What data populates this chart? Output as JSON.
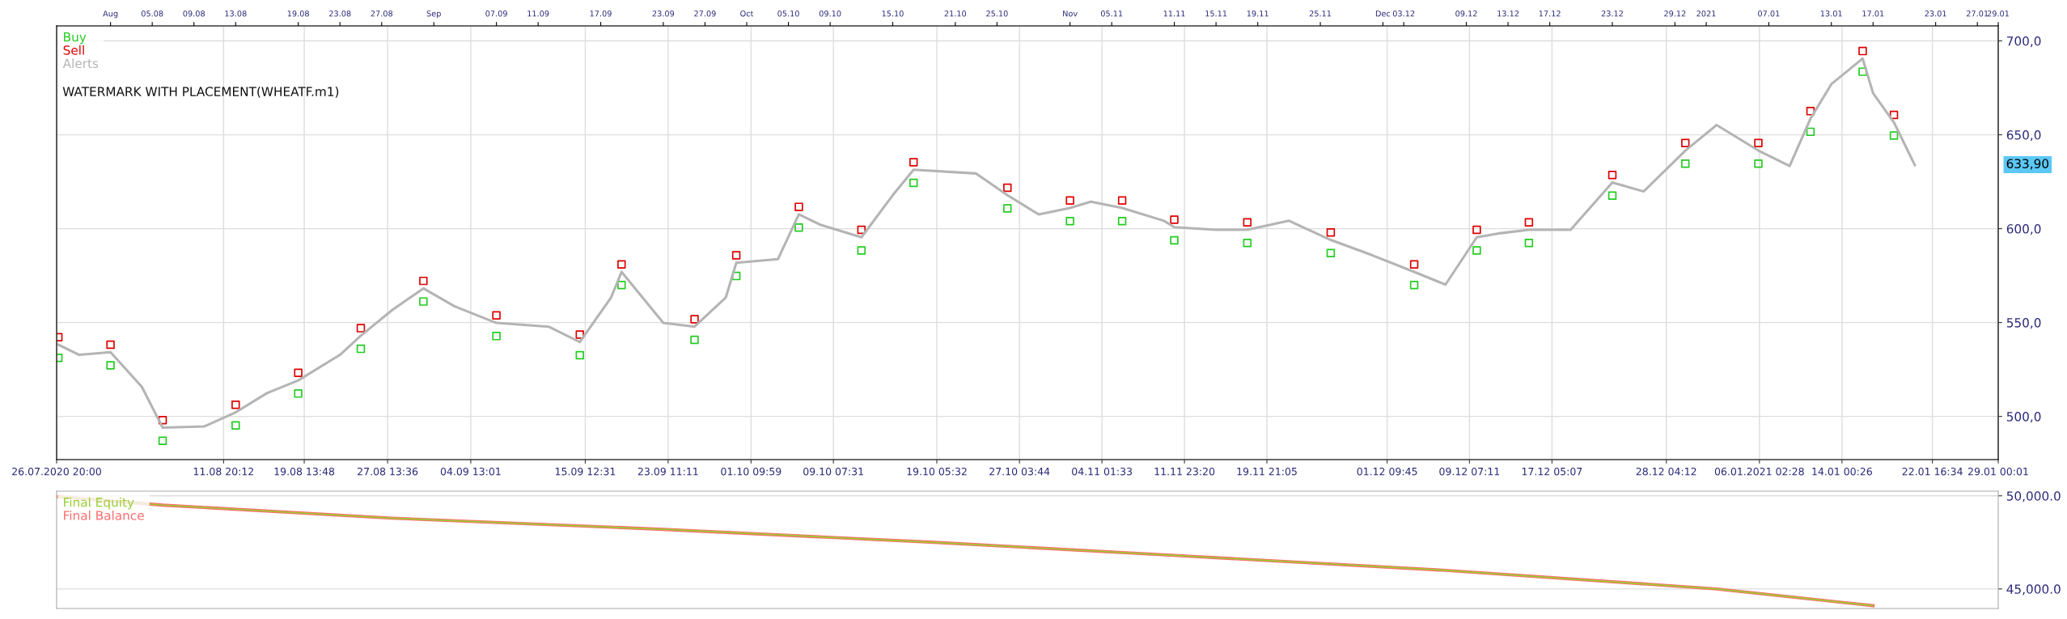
{
  "chart_data": [
    {
      "type": "line",
      "annotations": [
        "WATERMARK WITH PLACEMENT(WHEATF.m1)",
        "633,90"
      ],
      "xlim": [
        "2020-07-26T20:00",
        "2021-01-29T00:01"
      ],
      "xticks": [
        {
          "value": "2020-07-26T20:00",
          "label": "26.07.2020 20:00"
        },
        {
          "value": "2020-08-11T20:12",
          "label": "11.08 20:12"
        },
        {
          "value": "2020-08-19T13:48",
          "label": "19.08 13:48"
        },
        {
          "value": "2020-08-27T13:36",
          "label": "27.08 13:36"
        },
        {
          "value": "2020-09-04T13:01",
          "label": "04.09 13:01"
        },
        {
          "value": "2020-09-15T12:31",
          "label": "15.09 12:31"
        },
        {
          "value": "2020-09-23T11:11",
          "label": "23.09 11:11"
        },
        {
          "value": "2020-10-01T09:59",
          "label": "01.10 09:59"
        },
        {
          "value": "2020-10-09T07:31",
          "label": "09.10 07:31"
        },
        {
          "value": "2020-10-19T05:32",
          "label": "19.10 05:32"
        },
        {
          "value": "2020-10-27T03:44",
          "label": "27.10 03:44"
        },
        {
          "value": "2020-11-04T01:33",
          "label": "04.11 01:33"
        },
        {
          "value": "2020-11-11T23:20",
          "label": "11.11 23:20"
        },
        {
          "value": "2020-11-19T21:05",
          "label": "19.11 21:05"
        },
        {
          "value": "2020-12-01T09:45",
          "label": "01.12 09:45"
        },
        {
          "value": "2020-12-09T07:11",
          "label": "09.12 07:11"
        },
        {
          "value": "2020-12-17T05:07",
          "label": "17.12 05:07"
        },
        {
          "value": "2020-12-28T04:12",
          "label": "28.12 04:12"
        },
        {
          "value": "2021-01-06T02:28",
          "label": "06.01.2021 02:28"
        },
        {
          "value": "2021-01-14T00:26",
          "label": "14.01 00:26"
        },
        {
          "value": "2021-01-22T16:34",
          "label": "22.01 16:34"
        },
        {
          "value": "2021-01-29T00:01",
          "label": "29.01 00:01"
        }
      ],
      "x2lim": [
        "2020-07-26T20:00",
        "2021-01-29T00:01"
      ],
      "x2ticks": [
        {
          "value": "2020-08-01",
          "label": "Aug"
        },
        {
          "value": "2020-08-05",
          "label": "05.08"
        },
        {
          "value": "2020-08-09",
          "label": "09.08"
        },
        {
          "value": "2020-08-13",
          "label": "13.08"
        },
        {
          "value": "2020-08-19",
          "label": "19.08"
        },
        {
          "value": "2020-08-23",
          "label": "23.08"
        },
        {
          "value": "2020-08-27",
          "label": "27.08"
        },
        {
          "value": "2020-09-01",
          "label": "Sep"
        },
        {
          "value": "2020-09-07",
          "label": "07.09"
        },
        {
          "value": "2020-09-11",
          "label": "11.09"
        },
        {
          "value": "2020-09-17",
          "label": "17.09"
        },
        {
          "value": "2020-09-23",
          "label": "23.09"
        },
        {
          "value": "2020-09-27",
          "label": "27.09"
        },
        {
          "value": "2020-10-01",
          "label": "Oct"
        },
        {
          "value": "2020-10-05",
          "label": "05.10"
        },
        {
          "value": "2020-10-09",
          "label": "09.10"
        },
        {
          "value": "2020-10-15",
          "label": "15.10"
        },
        {
          "value": "2020-10-21",
          "label": "21.10"
        },
        {
          "value": "2020-10-25",
          "label": "25.10"
        },
        {
          "value": "2020-11-01",
          "label": "Nov"
        },
        {
          "value": "2020-11-05",
          "label": "05.11"
        },
        {
          "value": "2020-11-11",
          "label": "11.11"
        },
        {
          "value": "2020-11-15",
          "label": "15.11"
        },
        {
          "value": "2020-11-19",
          "label": "19.11"
        },
        {
          "value": "2020-11-25",
          "label": "25.11"
        },
        {
          "value": "2020-12-01",
          "label": "Dec"
        },
        {
          "value": "2020-12-03",
          "label": "03.12"
        },
        {
          "value": "2020-12-09",
          "label": "09.12"
        },
        {
          "value": "2020-12-13",
          "label": "13.12"
        },
        {
          "value": "2020-12-17",
          "label": "17.12"
        },
        {
          "value": "2020-12-23",
          "label": "23.12"
        },
        {
          "value": "2020-12-29",
          "label": "29.12"
        },
        {
          "value": "2021-01-01",
          "label": "2021"
        },
        {
          "value": "2021-01-07",
          "label": "07.01"
        },
        {
          "value": "2021-01-13",
          "label": "13.01"
        },
        {
          "value": "2021-01-17",
          "label": "17.01"
        },
        {
          "value": "2021-01-23",
          "label": "23.01"
        },
        {
          "value": "2021-01-27",
          "label": "27.01"
        },
        {
          "value": "2021-01-29",
          "label": "29.01"
        }
      ],
      "ylim": [
        477,
        708
      ],
      "yticks": [
        {
          "value": 500,
          "label": "500,0"
        },
        {
          "value": 550,
          "label": "550,0"
        },
        {
          "value": 600,
          "label": "600,0"
        },
        {
          "value": 650,
          "label": "650,0"
        },
        {
          "value": 700,
          "label": "700,0"
        }
      ],
      "grid": true,
      "legend": "top left",
      "series": [
        {
          "name": "Buy",
          "color": "#22cc22",
          "type": "scatter",
          "marker": "square",
          "x": [
            "2020-07-27",
            "2020-08-01",
            "2020-08-06",
            "2020-08-13",
            "2020-08-19",
            "2020-08-25",
            "2020-08-31",
            "2020-09-07",
            "2020-09-15",
            "2020-09-19",
            "2020-09-26",
            "2020-09-30",
            "2020-10-06",
            "2020-10-12",
            "2020-10-17",
            "2020-10-26",
            "2020-11-01",
            "2020-11-06",
            "2020-11-11",
            "2020-11-18",
            "2020-11-26",
            "2020-12-04",
            "2020-12-10",
            "2020-12-15",
            "2020-12-23",
            "2020-12-30",
            "2021-01-06",
            "2021-01-11",
            "2021-01-16",
            "2021-01-19"
          ],
          "values": [
            531.2,
            527.2,
            487,
            495.2,
            512.2,
            536,
            561.2,
            542.8,
            532.6,
            570,
            540.8,
            574.8,
            600.6,
            588.4,
            624.4,
            610.8,
            604,
            604,
            593.8,
            592.4,
            587,
            570,
            588.4,
            592.4,
            617.6,
            634.6,
            634.6,
            651.6,
            683.6,
            649.6
          ]
        },
        {
          "name": "Sell",
          "color": "#dd0000",
          "type": "scatter",
          "marker": "square",
          "x": [
            "2020-07-27",
            "2020-08-01",
            "2020-08-06",
            "2020-08-13",
            "2020-08-19",
            "2020-08-25",
            "2020-08-31",
            "2020-09-07",
            "2020-09-15",
            "2020-09-19",
            "2020-09-26",
            "2020-09-30",
            "2020-10-06",
            "2020-10-12",
            "2020-10-17",
            "2020-10-26",
            "2020-11-01",
            "2020-11-06",
            "2020-11-11",
            "2020-11-18",
            "2020-11-26",
            "2020-12-04",
            "2020-12-10",
            "2020-12-15",
            "2020-12-23",
            "2020-12-30",
            "2021-01-06",
            "2021-01-11",
            "2021-01-16",
            "2021-01-19"
          ],
          "values": [
            542.2,
            538.2,
            498,
            506.2,
            523.2,
            547,
            572.2,
            553.8,
            543.6,
            581,
            551.8,
            585.8,
            611.6,
            599.4,
            635.4,
            621.8,
            615,
            615,
            604.8,
            603.4,
            598,
            581,
            599.4,
            603.4,
            628.6,
            645.6,
            645.6,
            662.6,
            694.6,
            660.6
          ]
        },
        {
          "name": "Alerts",
          "color": "#b4b4b4",
          "type": "line",
          "x": [
            "2020-07-27",
            "2020-07-29",
            "2020-08-01",
            "2020-08-04",
            "2020-08-06",
            "2020-08-10",
            "2020-08-13",
            "2020-08-16",
            "2020-08-19",
            "2020-08-23",
            "2020-08-25",
            "2020-08-28",
            "2020-08-31",
            "2020-09-03",
            "2020-09-07",
            "2020-09-12",
            "2020-09-15",
            "2020-09-18",
            "2020-09-19",
            "2020-09-23",
            "2020-09-26",
            "2020-09-29",
            "2020-09-30",
            "2020-10-04",
            "2020-10-06",
            "2020-10-08",
            "2020-10-12",
            "2020-10-15",
            "2020-10-17",
            "2020-10-23",
            "2020-10-26",
            "2020-10-29",
            "2020-11-01",
            "2020-11-03",
            "2020-11-06",
            "2020-11-10",
            "2020-11-11",
            "2020-11-15",
            "2020-11-18",
            "2020-11-22",
            "2020-11-26",
            "2020-11-30",
            "2020-12-04",
            "2020-12-07",
            "2020-12-10",
            "2020-12-12",
            "2020-12-15",
            "2020-12-19",
            "2020-12-23",
            "2020-12-26",
            "2020-12-30",
            "2021-01-02",
            "2021-01-06",
            "2021-01-09",
            "2021-01-11",
            "2021-01-13",
            "2021-01-16",
            "2021-01-17",
            "2021-01-19",
            "2021-01-21"
          ],
          "values": [
            538.2,
            532.8,
            534.2,
            515.8,
            494,
            494.7,
            502.2,
            512.4,
            519.2,
            532.8,
            543,
            556.6,
            568.2,
            558.6,
            549.8,
            547.8,
            539.6,
            563.4,
            577,
            549.8,
            547.8,
            563.4,
            581.8,
            583.8,
            607.6,
            602.2,
            595.4,
            617.8,
            631.4,
            629.4,
            617.8,
            607.6,
            611,
            614.4,
            611,
            604.2,
            600.8,
            599.4,
            599.4,
            604.2,
            594,
            585.8,
            577,
            570.2,
            595.4,
            597.4,
            599.4,
            599.4,
            624.6,
            619.8,
            641.6,
            655.2,
            641.6,
            633.4,
            658.6,
            677,
            690.6,
            672.2,
            656.6,
            633.9
          ]
        }
      ]
    },
    {
      "type": "line",
      "xlim": [
        "2020-07-26T20:00",
        "2021-01-29T00:01"
      ],
      "tick_labels": "y",
      "ylim": [
        43950,
        50250
      ],
      "yticks": [
        {
          "value": 45000,
          "label": "45,000.0"
        },
        {
          "value": 50000,
          "label": "50,000.0"
        }
      ],
      "grid": true,
      "legend": "top left",
      "series": [
        {
          "name": "Final Equity",
          "color": "#9acd32",
          "x": [
            "2020-07-27",
            "2020-08-06",
            "2020-08-28",
            "2020-09-23",
            "2020-10-19",
            "2020-11-11",
            "2020-12-07",
            "2021-01-02",
            "2021-01-17"
          ],
          "values": [
            49950,
            49500,
            48800,
            48200,
            47500,
            46800,
            46000,
            45000,
            44100
          ]
        },
        {
          "name": "Final Balance",
          "color": "#ff6b6b",
          "x": [
            "2020-07-27",
            "2020-08-06",
            "2020-08-28",
            "2020-09-23",
            "2020-10-19",
            "2020-11-11",
            "2020-12-07",
            "2021-01-02",
            "2021-01-17"
          ],
          "values": [
            49950,
            49500,
            48800,
            48200,
            47500,
            46800,
            46000,
            45000,
            44100
          ]
        }
      ]
    }
  ]
}
